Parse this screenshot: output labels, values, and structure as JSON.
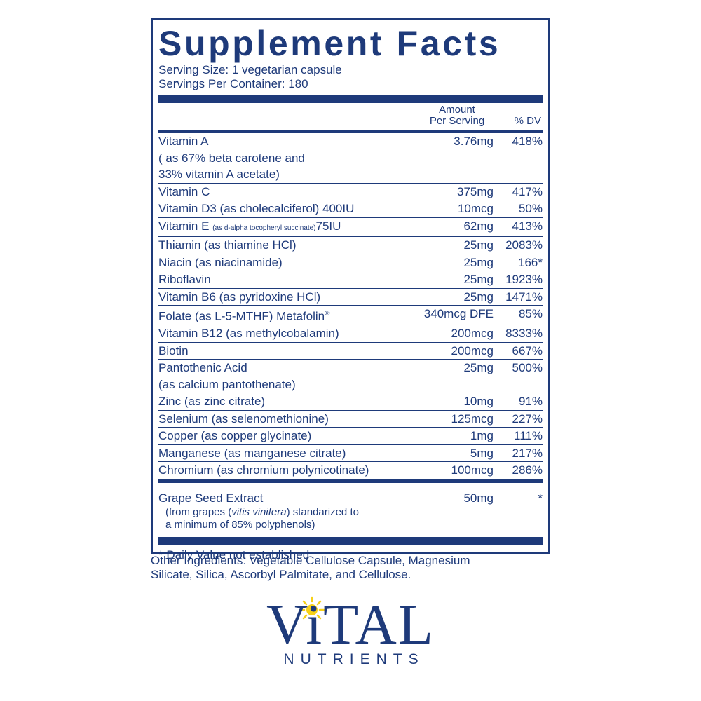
{
  "title": "Supplement Facts",
  "serving_size": "Serving Size: 1 vegetarian capsule",
  "servings_per_container": "Servings Per Container: 180",
  "columns": {
    "amount": [
      "Amount",
      "Per Serving"
    ],
    "dv": "% DV"
  },
  "rows": [
    {
      "name": "Vitamin A",
      "sub": [
        "( as 67% beta carotene and",
        "33% vitamin A acetate)"
      ],
      "amount": "3.76mg",
      "dv": "418%"
    },
    {
      "name": "Vitamin C",
      "amount": "375mg",
      "dv": "417%"
    },
    {
      "name": "Vitamin D3 (as cholecalciferol) 400IU",
      "amount": "10mcg",
      "dv": "50%"
    },
    {
      "name": "Vitamin E",
      "detail": "(as d-alpha tocopheryl succinate)",
      "suffix": "75IU",
      "amount": "62mg",
      "dv": "413%"
    },
    {
      "name": "Thiamin (as thiamine HCl)",
      "amount": "25mg",
      "dv": "2083%"
    },
    {
      "name": "Niacin (as niacinamide)",
      "amount": "25mg",
      "dv": "166*"
    },
    {
      "name": "Riboflavin",
      "amount": "25mg",
      "dv": "1923%"
    },
    {
      "name": "Vitamin B6 (as pyridoxine HCl)",
      "amount": "25mg",
      "dv": "1471%"
    },
    {
      "name": "Folate (as L-5-MTHF) Metafolin",
      "mark": "®",
      "amount": "340mcg DFE",
      "dv": "85%"
    },
    {
      "name": "Vitamin B12 (as methylcobalamin)",
      "amount": "200mcg",
      "dv": "8333%"
    },
    {
      "name": "Biotin",
      "amount": "200mcg",
      "dv": "667%"
    },
    {
      "name": "Pantothenic Acid",
      "sub": [
        "(as calcium pantothenate)"
      ],
      "amount": "25mg",
      "dv": "500%"
    },
    {
      "name": "Zinc (as zinc citrate)",
      "amount": "10mg",
      "dv": "91%"
    },
    {
      "name": "Selenium (as selenomethionine)",
      "amount": "125mcg",
      "dv": "227%"
    },
    {
      "name": "Copper (as copper glycinate)",
      "amount": "1mg",
      "dv": "111%"
    },
    {
      "name": "Manganese (as manganese citrate)",
      "amount": "5mg",
      "dv": "217%"
    },
    {
      "name": "Chromium (as chromium polynicotinate)",
      "amount": "100mcg",
      "dv": "286%"
    }
  ],
  "extract": {
    "name": "Grape Seed Extract",
    "amount": "50mg",
    "dv": "*",
    "description": [
      "(from grapes (",
      "vitis vinifera",
      ") standarized to",
      "a minimum of 85% polyphenols)"
    ]
  },
  "footnote": "* Daily Value not established",
  "other_ingredients": [
    "Other Ingredients: Vegetable Cellulose Capsule, Magnesium",
    "Silicate, Silica, Ascorbyl Palmitate, and Cellulose."
  ],
  "logo": {
    "name": "ViTAL",
    "tagline": "NUTRIENTS"
  }
}
